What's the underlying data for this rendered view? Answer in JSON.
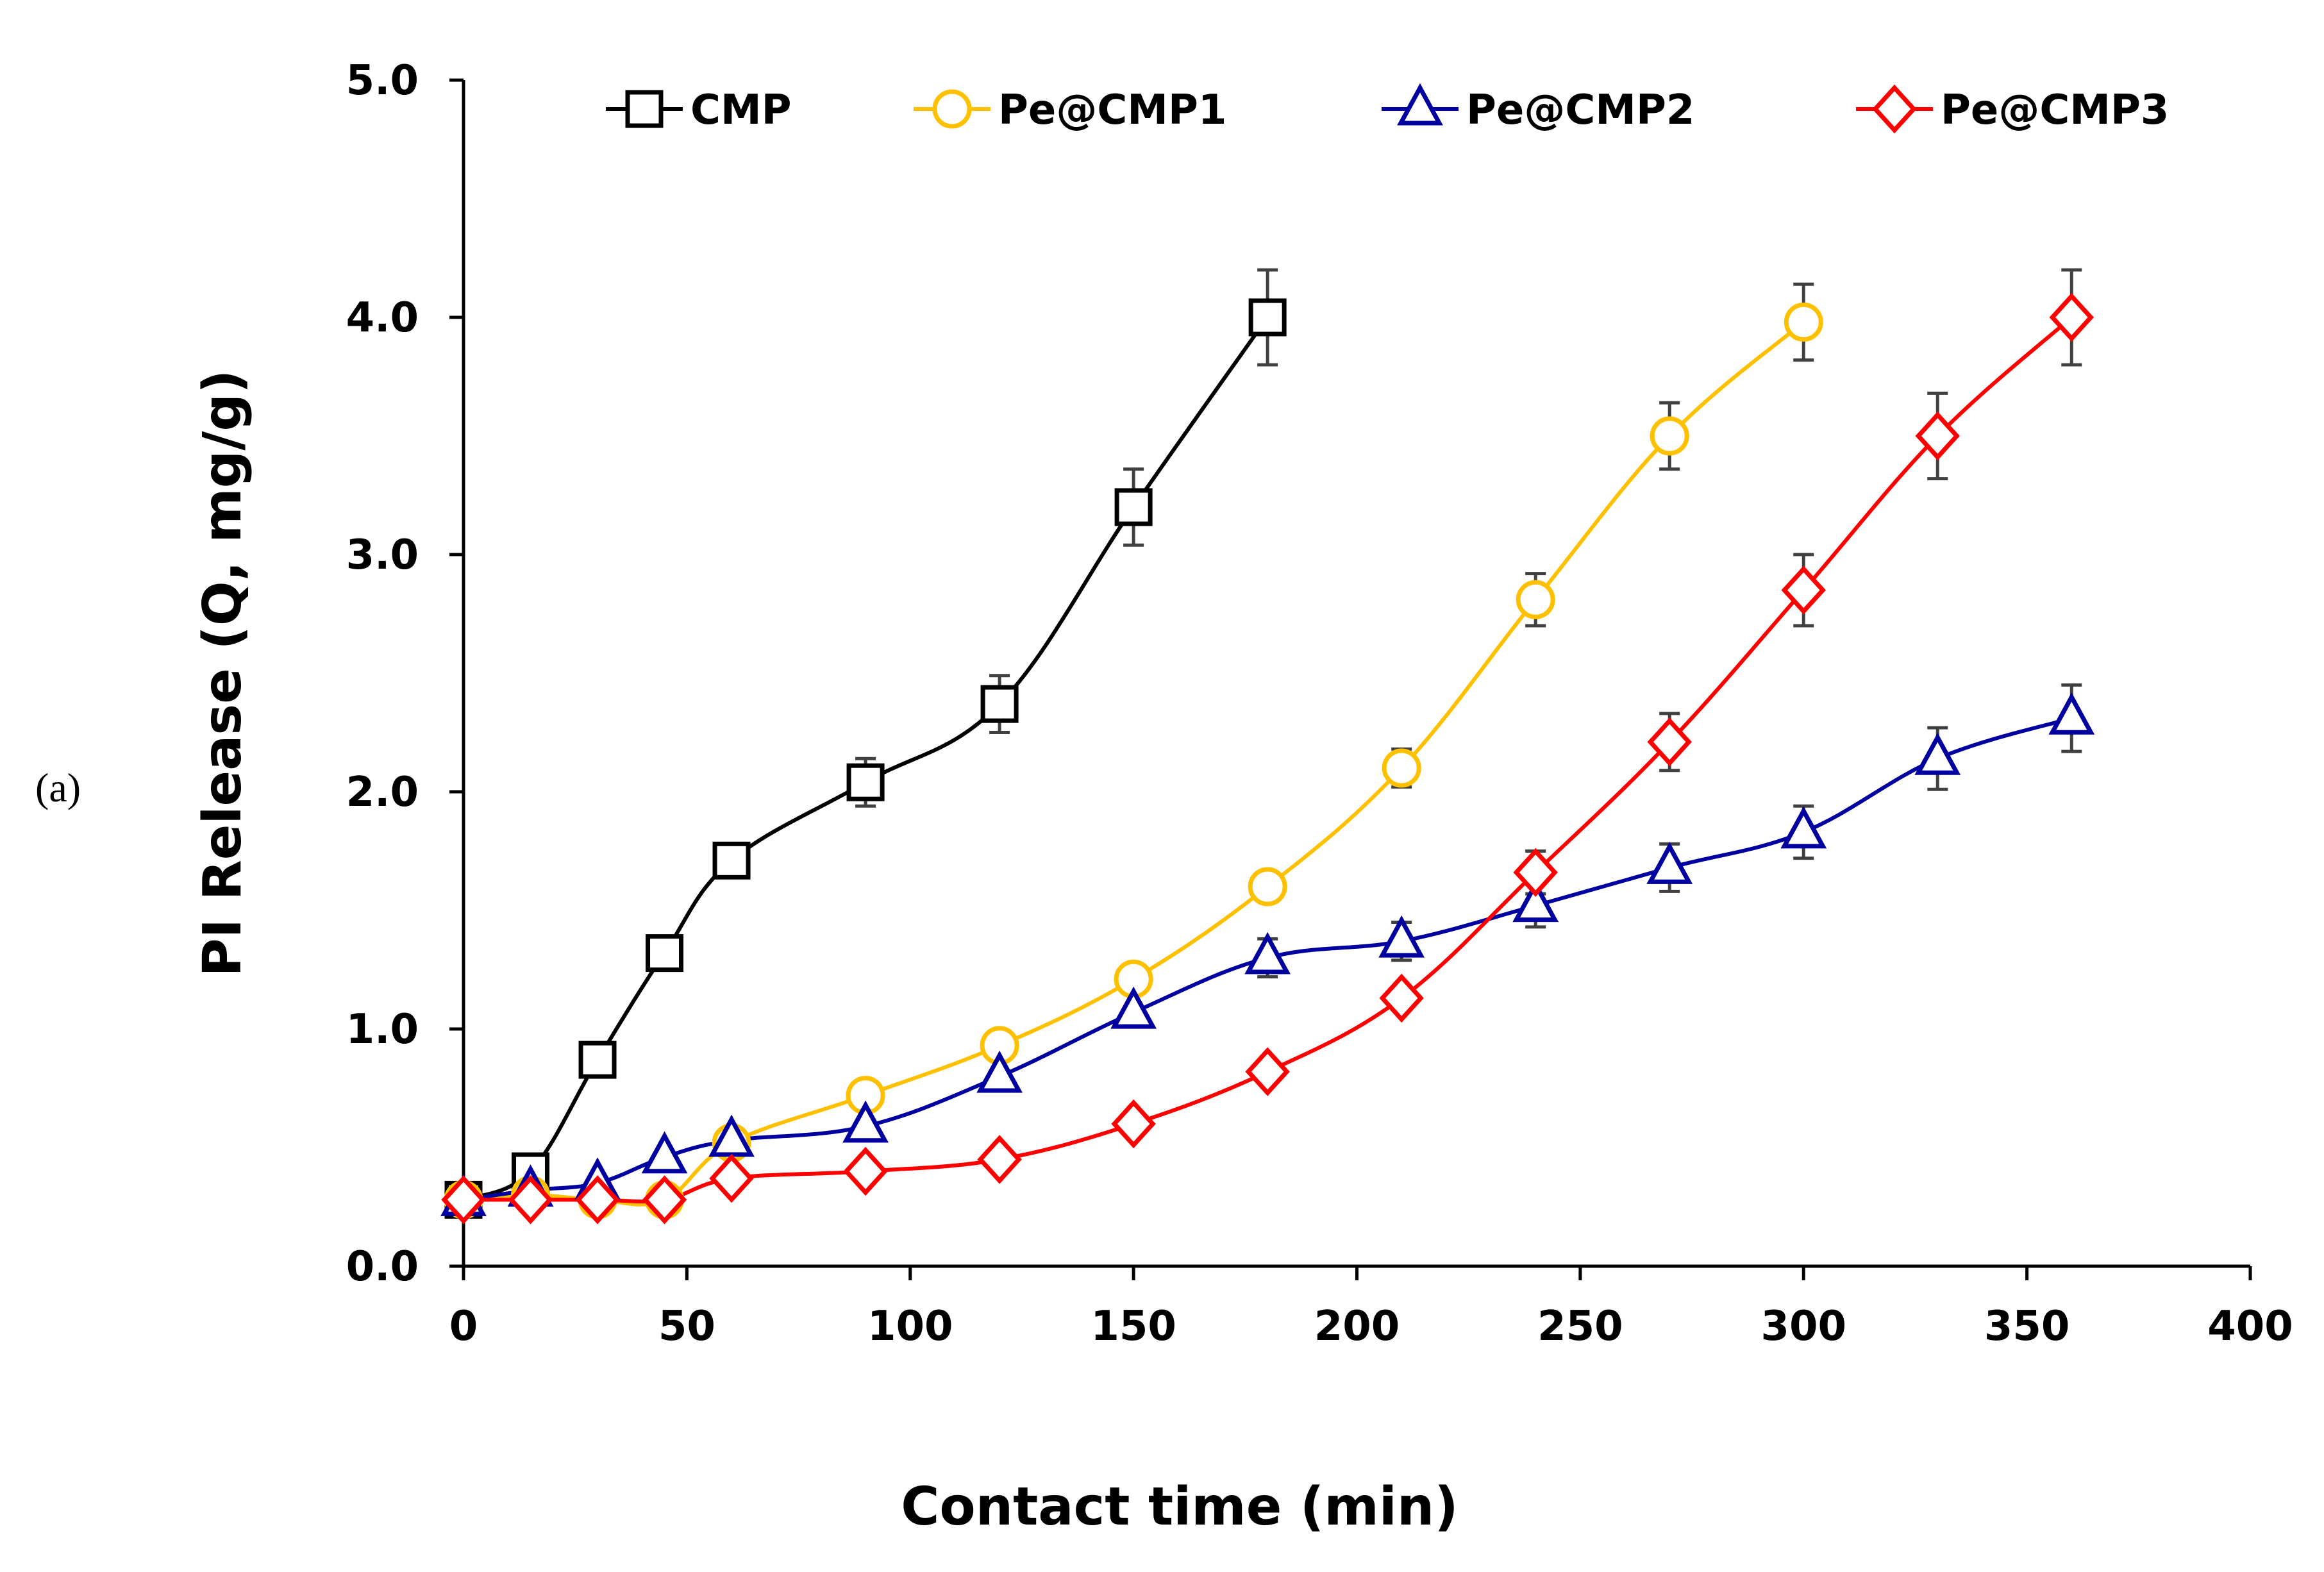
{
  "panel_label": "(a)",
  "chart_data": {
    "type": "line",
    "title": "",
    "xlabel": "Contact time (min)",
    "ylabel": "PI Release (Q, mg/g)",
    "xlim": [
      0,
      400
    ],
    "ylim": [
      0,
      5
    ],
    "xticks": [
      0,
      50,
      100,
      150,
      200,
      250,
      300,
      350,
      400
    ],
    "yticks": [
      0,
      1,
      2,
      3,
      4,
      5
    ],
    "ytick_labels": [
      "0.0",
      "1.0",
      "2.0",
      "3.0",
      "4.0",
      "5.0"
    ],
    "grid": false,
    "legend_position": "top",
    "series": [
      {
        "name": "CMP",
        "color": "#000000",
        "marker": "square",
        "x": [
          0,
          15,
          30,
          45,
          60,
          90,
          120,
          150,
          180
        ],
        "values": [
          0.28,
          0.4,
          0.87,
          1.32,
          1.71,
          2.04,
          2.37,
          3.2,
          4.0
        ],
        "errors": [
          0,
          0,
          0,
          0,
          0.07,
          0.1,
          0.12,
          0.16,
          0.2
        ]
      },
      {
        "name": "Pe@CMP1",
        "color": "#FFC000",
        "marker": "circle",
        "x": [
          0,
          15,
          30,
          45,
          60,
          90,
          120,
          150,
          180,
          210,
          240,
          270,
          300
        ],
        "values": [
          0.28,
          0.3,
          0.28,
          0.28,
          0.52,
          0.72,
          0.93,
          1.21,
          1.6,
          2.1,
          2.81,
          3.5,
          3.98
        ],
        "errors": [
          0,
          0,
          0,
          0,
          0,
          0,
          0,
          0,
          0,
          0.08,
          0.11,
          0.14,
          0.16
        ]
      },
      {
        "name": "Pe@CMP2",
        "color": "#0000A0",
        "marker": "triangle",
        "x": [
          0,
          15,
          30,
          45,
          60,
          90,
          120,
          150,
          180,
          210,
          240,
          270,
          300,
          330,
          360
        ],
        "values": [
          0.28,
          0.32,
          0.35,
          0.46,
          0.53,
          0.59,
          0.8,
          1.07,
          1.3,
          1.37,
          1.52,
          1.68,
          1.83,
          2.14,
          2.31
        ],
        "errors": [
          0,
          0,
          0,
          0,
          0,
          0,
          0,
          0,
          0.08,
          0.08,
          0.09,
          0.1,
          0.11,
          0.13,
          0.14
        ]
      },
      {
        "name": "Pe@CMP3",
        "color": "#FF0000",
        "marker": "diamond",
        "x": [
          0,
          15,
          30,
          45,
          60,
          90,
          120,
          150,
          180,
          210,
          240,
          270,
          300,
          330,
          360
        ],
        "values": [
          0.28,
          0.28,
          0.28,
          0.28,
          0.37,
          0.4,
          0.45,
          0.6,
          0.82,
          1.13,
          1.66,
          2.21,
          2.85,
          3.5,
          4.0
        ],
        "errors": [
          0,
          0,
          0,
          0,
          0,
          0,
          0,
          0,
          0,
          0,
          0.09,
          0.12,
          0.15,
          0.18,
          0.2
        ]
      }
    ]
  }
}
